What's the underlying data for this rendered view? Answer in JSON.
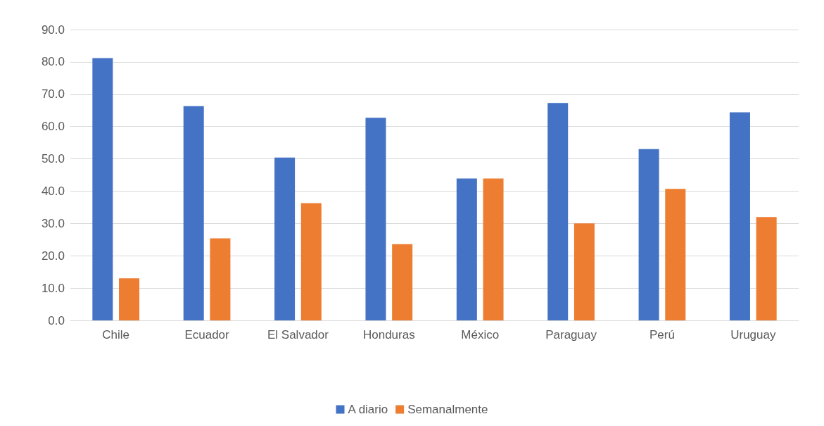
{
  "chart_data": {
    "type": "bar",
    "categories": [
      "Chile",
      "Ecuador",
      "El Salvador",
      "Honduras",
      "México",
      "Paraguay",
      "Perú",
      "Uruguay"
    ],
    "series": [
      {
        "name": "A diario",
        "color": "#4472c4",
        "values": [
          81.2,
          66.3,
          50.4,
          62.7,
          43.9,
          67.3,
          53.0,
          64.4
        ]
      },
      {
        "name": "Semanalmente",
        "color": "#ed7d31",
        "values": [
          13.0,
          25.4,
          36.3,
          23.6,
          43.9,
          30.0,
          40.7,
          32.0
        ]
      }
    ],
    "ylim": [
      0,
      90
    ],
    "yticks": [
      {
        "value": 0,
        "label": "0.0"
      },
      {
        "value": 10,
        "label": "10.0"
      },
      {
        "value": 20,
        "label": "20.0"
      },
      {
        "value": 30,
        "label": "30.0"
      },
      {
        "value": 40,
        "label": "40.0"
      },
      {
        "value": 50,
        "label": "50.0"
      },
      {
        "value": 60,
        "label": "60.0"
      },
      {
        "value": 70,
        "label": "70.0"
      },
      {
        "value": 80,
        "label": "80.0"
      },
      {
        "value": 90,
        "label": "90.0"
      }
    ],
    "grid": "y",
    "legend": "bottom"
  }
}
